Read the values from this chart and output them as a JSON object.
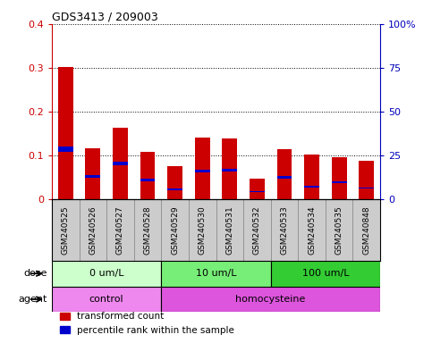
{
  "title": "GDS3413 / 209003",
  "samples": [
    "GSM240525",
    "GSM240526",
    "GSM240527",
    "GSM240528",
    "GSM240529",
    "GSM240530",
    "GSM240531",
    "GSM240532",
    "GSM240533",
    "GSM240534",
    "GSM240535",
    "GSM240848"
  ],
  "red_values": [
    0.302,
    0.115,
    0.163,
    0.108,
    0.076,
    0.14,
    0.138,
    0.047,
    0.113,
    0.101,
    0.096,
    0.088
  ],
  "blue_values": [
    0.012,
    0.006,
    0.008,
    0.005,
    0.004,
    0.007,
    0.007,
    0.003,
    0.006,
    0.004,
    0.005,
    0.004
  ],
  "blue_positions": [
    0.108,
    0.048,
    0.078,
    0.041,
    0.02,
    0.06,
    0.062,
    0.015,
    0.047,
    0.027,
    0.036,
    0.023
  ],
  "ylim_left": [
    0,
    0.4
  ],
  "ylim_right": [
    0,
    100
  ],
  "yticks_left": [
    0,
    0.1,
    0.2,
    0.3,
    0.4
  ],
  "yticks_right": [
    0,
    25,
    50,
    75,
    100
  ],
  "ytick_labels_left": [
    "0",
    "0.1",
    "0.2",
    "0.3",
    "0.4"
  ],
  "ytick_labels_right": [
    "0",
    "25",
    "50",
    "75",
    "100%"
  ],
  "dose_groups": [
    {
      "label": "0 um/L",
      "start": 0,
      "end": 4,
      "color": "#ccffcc"
    },
    {
      "label": "10 um/L",
      "start": 4,
      "end": 8,
      "color": "#77ee77"
    },
    {
      "label": "100 um/L",
      "start": 8,
      "end": 12,
      "color": "#33cc33"
    }
  ],
  "agent_groups": [
    {
      "label": "control",
      "start": 0,
      "end": 4,
      "color": "#ee88ee"
    },
    {
      "label": "homocysteine",
      "start": 4,
      "end": 12,
      "color": "#dd55dd"
    }
  ],
  "dose_label": "dose",
  "agent_label": "agent",
  "legend_red": "transformed count",
  "legend_blue": "percentile rank within the sample",
  "bar_color_red": "#cc0000",
  "bar_color_blue": "#0000cc",
  "left_axis_color": "#cc0000",
  "right_axis_color": "#0000bb",
  "bar_width": 0.55,
  "sample_box_color": "#cccccc",
  "sample_box_edge_color": "#888888"
}
